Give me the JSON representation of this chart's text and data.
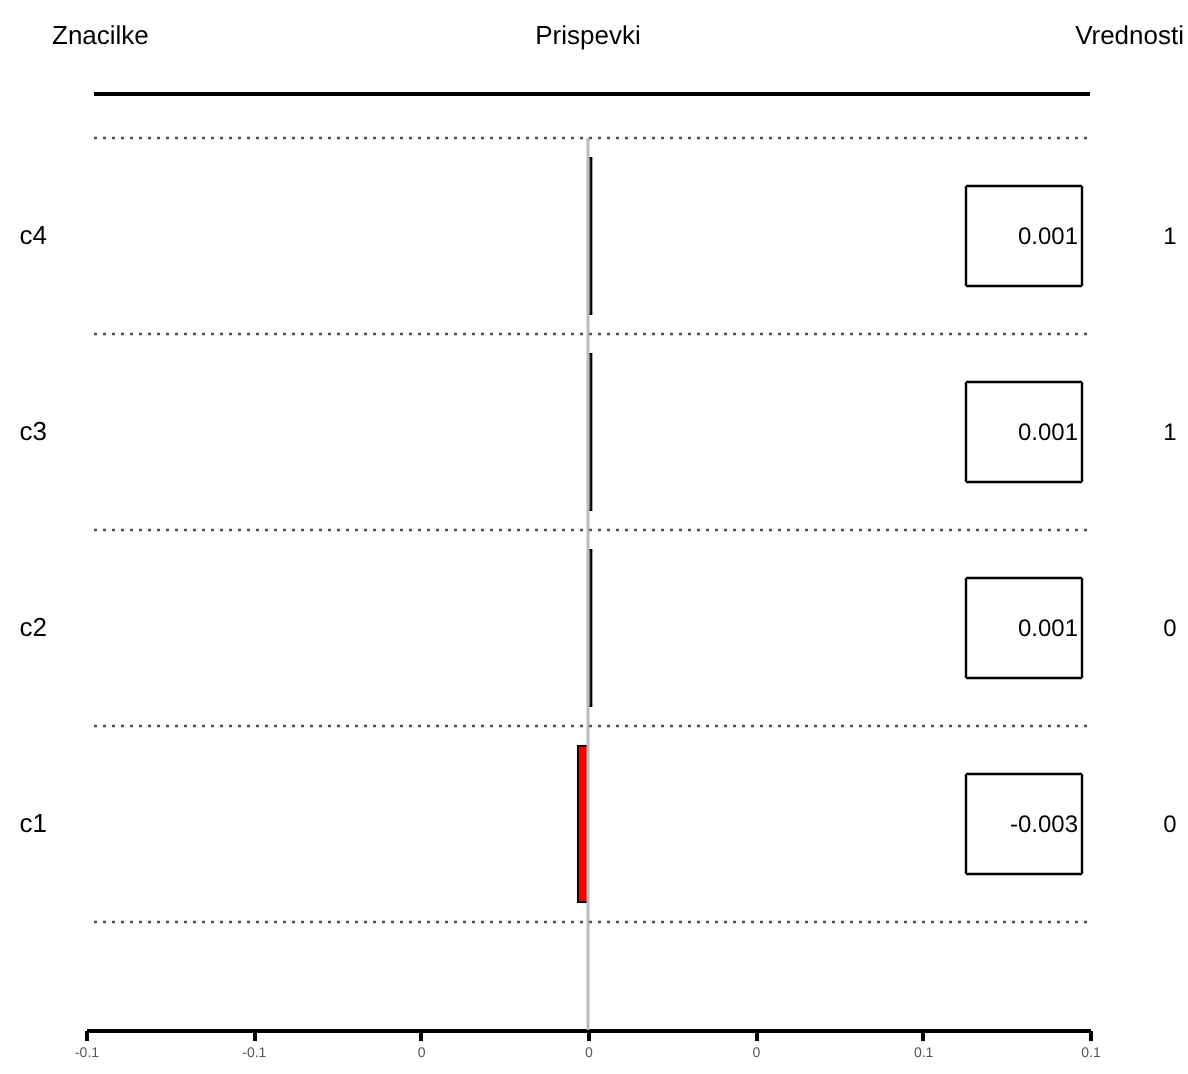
{
  "chart_data": {
    "type": "bar",
    "orientation": "horizontal",
    "title": "Prispevki",
    "ylabel": "Znacilke",
    "y2label": "Vrednosti",
    "categories": [
      "c4",
      "c3",
      "c2",
      "c1"
    ],
    "values": [
      0.001,
      0.001,
      0.001,
      -0.003
    ],
    "colors": [
      "#37474f",
      "#37474f",
      "#37474f",
      "#ff0000"
    ],
    "data_labels": true,
    "y2_categories": [
      "1",
      "1",
      "0",
      "0"
    ],
    "xlim": [
      -0.15,
      0.15
    ],
    "xticks": [
      {
        "value": -0.15,
        "label": "-0.1"
      },
      {
        "value": -0.1,
        "label": "-0.1"
      },
      {
        "value": -0.05,
        "label": "0"
      },
      {
        "value": 0,
        "label": "0"
      },
      {
        "value": 0.05,
        "label": "0"
      },
      {
        "value": 0.1,
        "label": "0.1"
      },
      {
        "value": 0.15,
        "label": "0.1"
      }
    ],
    "ref_lines": [
      {
        "axis": "x",
        "value": 0,
        "color": "#bbbbbb"
      }
    ],
    "grid": "y"
  }
}
